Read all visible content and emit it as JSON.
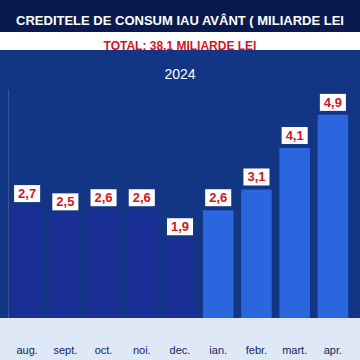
{
  "chart_data": {
    "type": "bar",
    "title": "CREDITELE DE CONSUM IAU AVÂNT ( MILIARDE LEI",
    "subtitle": "TOTAL: 38,1 MILIARDE LEI",
    "annotation": "2024",
    "categories": [
      "aug.",
      "sept.",
      "oct.",
      "noi.",
      "dec.",
      "ian.",
      "febr.",
      "mart.",
      "apr."
    ],
    "values": [
      2.7,
      2.5,
      2.6,
      2.6,
      1.9,
      2.6,
      3.1,
      4.1,
      4.9
    ],
    "value_labels": [
      "2,7",
      "2,5",
      "2,6",
      "2,6",
      "1,9",
      "2,6",
      "3,1",
      "4,1",
      "4,9"
    ],
    "colors": [
      "#1a2f96",
      "#1a2f96",
      "#1a2f96",
      "#1a2f96",
      "#1a2f96",
      "#2a66de",
      "#2a66de",
      "#2a66de",
      "#2a66de"
    ],
    "ylim": [
      0,
      5.5
    ],
    "grid": false,
    "data_labels": true,
    "tick_labels": "x"
  }
}
